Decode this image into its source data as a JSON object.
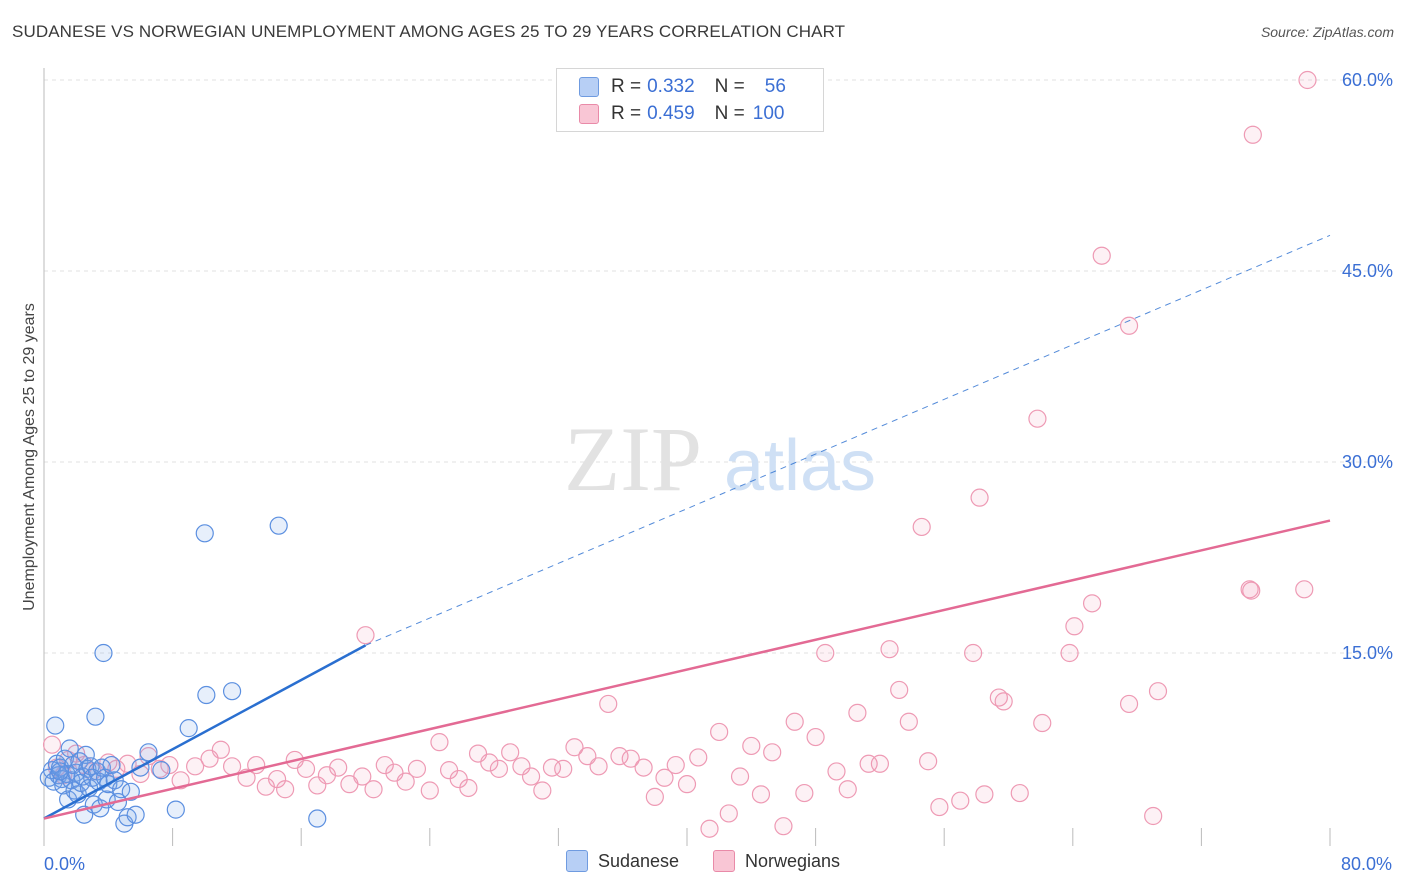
{
  "title": "SUDANESE VS NORWEGIAN UNEMPLOYMENT AMONG AGES 25 TO 29 YEARS CORRELATION CHART",
  "source": "Source: ZipAtlas.com",
  "watermark": {
    "zip": "ZIP",
    "atlas": "atlas"
  },
  "legend": {
    "r_label": "R =",
    "n_label": "N =",
    "rows": [
      {
        "name": "Sudanese",
        "r": "0.332",
        "n": "56",
        "fill": "#b7cff5",
        "stroke": "#6f9be0"
      },
      {
        "name": "Norwegians",
        "r": "0.459",
        "n": "100",
        "fill": "#f9c6d5",
        "stroke": "#e98aa8"
      }
    ]
  },
  "bottom_legend": [
    "Sudanese",
    "Norwegians"
  ],
  "colors": {
    "blue_fill": "rgba(120,165,235,0.18)",
    "blue_stroke": "#5b8fe0",
    "blue_line": "#2a6fd0",
    "pink_fill": "rgba(240,140,170,0.12)",
    "pink_stroke": "#ee9ab4",
    "pink_line": "#e36a94",
    "grid": "#e1e1e1",
    "tick_text": "#3b6fd4"
  },
  "chart_data": {
    "type": "scatter",
    "title": "SUDANESE VS NORWEGIAN UNEMPLOYMENT AMONG AGES 25 TO 29 YEARS CORRELATION CHART",
    "xlabel": "",
    "ylabel": "Unemployment Among Ages 25 to 29 years",
    "xlim": [
      0,
      80
    ],
    "ylim": [
      0,
      60
    ],
    "x_tick_labels": [
      "0.0%",
      "80.0%"
    ],
    "y_ticks": [
      15,
      30,
      45,
      60
    ],
    "y_tick_labels": [
      "15.0%",
      "30.0%",
      "45.0%",
      "60.0%"
    ],
    "series": [
      {
        "name": "Sudanese",
        "r": 0.332,
        "n": 56,
        "trend": {
          "x0": 0,
          "y0": 2.0,
          "x1": 20,
          "y1": 15.6,
          "dashed_to_x": 80,
          "dashed_to_y": 47.8
        },
        "points": [
          [
            0.3,
            5.2
          ],
          [
            0.5,
            5.8
          ],
          [
            0.6,
            4.9
          ],
          [
            0.8,
            6.3
          ],
          [
            0.9,
            5.4
          ],
          [
            1.0,
            6.0
          ],
          [
            1.1,
            5.1
          ],
          [
            1.2,
            4.6
          ],
          [
            1.3,
            6.7
          ],
          [
            1.4,
            5.5
          ],
          [
            1.5,
            3.5
          ],
          [
            1.6,
            7.5
          ],
          [
            1.7,
            5.0
          ],
          [
            1.8,
            6.2
          ],
          [
            1.9,
            4.2
          ],
          [
            2.0,
            5.6
          ],
          [
            2.1,
            3.9
          ],
          [
            2.2,
            6.5
          ],
          [
            2.3,
            4.8
          ],
          [
            2.4,
            5.3
          ],
          [
            2.5,
            2.3
          ],
          [
            2.6,
            7.0
          ],
          [
            2.7,
            5.9
          ],
          [
            2.8,
            4.4
          ],
          [
            2.9,
            6.1
          ],
          [
            3.0,
            5.2
          ],
          [
            3.1,
            3.1
          ],
          [
            3.2,
            10.0
          ],
          [
            3.3,
            5.7
          ],
          [
            3.4,
            4.9
          ],
          [
            3.5,
            2.8
          ],
          [
            3.6,
            6.0
          ],
          [
            3.7,
            15.0
          ],
          [
            3.8,
            5.2
          ],
          [
            3.9,
            3.5
          ],
          [
            4.0,
            4.7
          ],
          [
            4.2,
            6.2
          ],
          [
            4.4,
            5.0
          ],
          [
            4.6,
            3.3
          ],
          [
            4.8,
            4.3
          ],
          [
            5.0,
            1.6
          ],
          [
            5.2,
            2.1
          ],
          [
            5.4,
            4.1
          ],
          [
            5.7,
            2.3
          ],
          [
            6.0,
            6.0
          ],
          [
            6.5,
            7.2
          ],
          [
            7.3,
            5.8
          ],
          [
            8.2,
            2.7
          ],
          [
            9.0,
            9.1
          ],
          [
            10.1,
            11.7
          ],
          [
            10.0,
            24.4
          ],
          [
            11.7,
            12.0
          ],
          [
            14.6,
            25.0
          ],
          [
            17.0,
            2.0
          ],
          [
            0.7,
            9.3
          ],
          [
            1.0,
            5.7
          ]
        ]
      },
      {
        "name": "Norwegians",
        "r": 0.459,
        "n": 100,
        "trend": {
          "x0": 0,
          "y0": 2.0,
          "x1": 80,
          "y1": 25.4
        },
        "points": [
          [
            0.5,
            7.8
          ],
          [
            0.8,
            6.0
          ],
          [
            1.2,
            5.4
          ],
          [
            1.5,
            6.6
          ],
          [
            2.0,
            7.1
          ],
          [
            2.5,
            6.2
          ],
          [
            3.0,
            5.7
          ],
          [
            4.0,
            6.4
          ],
          [
            4.5,
            5.9
          ],
          [
            5.2,
            6.3
          ],
          [
            6.0,
            5.5
          ],
          [
            6.5,
            6.9
          ],
          [
            7.2,
            5.9
          ],
          [
            7.8,
            6.2
          ],
          [
            8.5,
            5.0
          ],
          [
            9.4,
            6.1
          ],
          [
            10.3,
            6.7
          ],
          [
            11.0,
            7.4
          ],
          [
            11.7,
            6.1
          ],
          [
            12.6,
            5.2
          ],
          [
            13.2,
            6.2
          ],
          [
            13.8,
            4.5
          ],
          [
            14.5,
            5.1
          ],
          [
            15.0,
            4.3
          ],
          [
            15.6,
            6.6
          ],
          [
            16.3,
            5.9
          ],
          [
            17.0,
            4.6
          ],
          [
            17.6,
            5.4
          ],
          [
            18.3,
            6.0
          ],
          [
            19.0,
            4.7
          ],
          [
            19.8,
            5.3
          ],
          [
            20.5,
            4.3
          ],
          [
            21.2,
            6.2
          ],
          [
            21.8,
            5.6
          ],
          [
            22.5,
            4.9
          ],
          [
            23.2,
            5.9
          ],
          [
            24.0,
            4.2
          ],
          [
            24.6,
            8.0
          ],
          [
            25.2,
            5.8
          ],
          [
            25.8,
            5.1
          ],
          [
            26.4,
            4.4
          ],
          [
            27.0,
            7.1
          ],
          [
            27.7,
            6.4
          ],
          [
            28.3,
            5.9
          ],
          [
            29.0,
            7.2
          ],
          [
            29.7,
            6.1
          ],
          [
            30.3,
            5.3
          ],
          [
            31.0,
            4.2
          ],
          [
            31.6,
            6.0
          ],
          [
            32.3,
            5.9
          ],
          [
            33.0,
            7.6
          ],
          [
            33.8,
            6.9
          ],
          [
            34.5,
            6.1
          ],
          [
            35.1,
            11.0
          ],
          [
            35.8,
            6.9
          ],
          [
            36.5,
            6.7
          ],
          [
            37.3,
            6.0
          ],
          [
            38.0,
            3.7
          ],
          [
            38.6,
            5.2
          ],
          [
            39.3,
            6.2
          ],
          [
            40.0,
            4.7
          ],
          [
            40.7,
            6.8
          ],
          [
            41.4,
            1.2
          ],
          [
            42.0,
            8.8
          ],
          [
            42.6,
            2.4
          ],
          [
            43.3,
            5.3
          ],
          [
            44.0,
            7.7
          ],
          [
            44.6,
            3.9
          ],
          [
            45.3,
            7.2
          ],
          [
            46.0,
            1.4
          ],
          [
            46.7,
            9.6
          ],
          [
            47.3,
            4.0
          ],
          [
            48.0,
            8.4
          ],
          [
            48.6,
            15.0
          ],
          [
            49.3,
            5.7
          ],
          [
            50.0,
            4.3
          ],
          [
            50.6,
            10.3
          ],
          [
            51.3,
            6.3
          ],
          [
            52.0,
            6.3
          ],
          [
            52.6,
            15.3
          ],
          [
            53.2,
            12.1
          ],
          [
            53.8,
            9.6
          ],
          [
            55.0,
            6.5
          ],
          [
            55.7,
            2.9
          ],
          [
            57.0,
            3.4
          ],
          [
            57.8,
            15.0
          ],
          [
            58.5,
            3.9
          ],
          [
            59.4,
            11.5
          ],
          [
            59.7,
            11.2
          ],
          [
            60.7,
            4.0
          ],
          [
            62.1,
            9.5
          ],
          [
            63.8,
            15.0
          ],
          [
            64.1,
            17.1
          ],
          [
            65.2,
            18.9
          ],
          [
            67.5,
            11.0
          ],
          [
            69.0,
            2.2
          ],
          [
            69.3,
            12.0
          ],
          [
            75.1,
            19.9
          ],
          [
            75.0,
            20.0
          ],
          [
            78.4,
            20.0
          ]
        ],
        "outliers": [
          [
            58.2,
            27.2
          ],
          [
            61.8,
            33.4
          ],
          [
            65.8,
            46.2
          ],
          [
            67.5,
            40.7
          ],
          [
            75.2,
            55.7
          ],
          [
            78.6,
            60.0
          ],
          [
            54.6,
            24.9
          ],
          [
            20.0,
            16.4
          ]
        ]
      }
    ]
  }
}
